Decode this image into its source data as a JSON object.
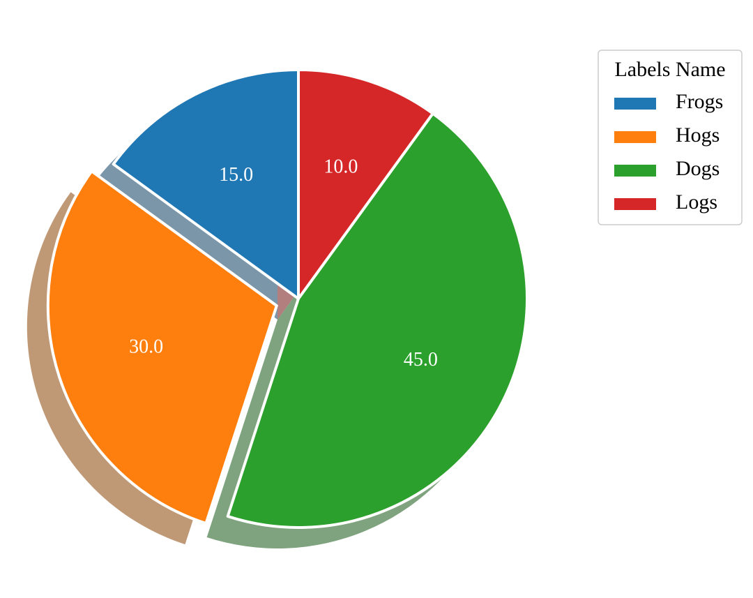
{
  "chart_data": {
    "type": "pie",
    "categories": [
      "Frogs",
      "Hogs",
      "Dogs",
      "Logs"
    ],
    "values": [
      15,
      30,
      45,
      10
    ],
    "value_labels": [
      "15.0",
      "30.0",
      "45.0",
      "10.0"
    ],
    "colors": [
      "#1f77b4",
      "#ff7f0e",
      "#2ca02c",
      "#d62728"
    ],
    "explode": [
      0,
      0.1,
      0,
      0
    ],
    "start_angle": 90,
    "shadow": true,
    "legend_title": "Labels Name",
    "legend": "upper right"
  }
}
